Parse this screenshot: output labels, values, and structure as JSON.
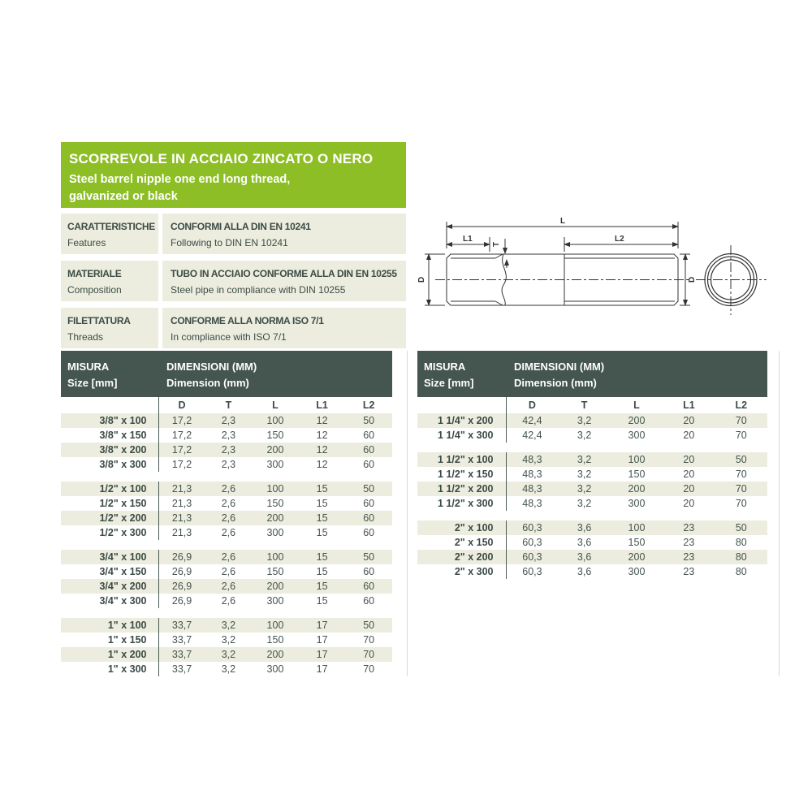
{
  "header": {
    "title_it": "SCORREVOLE IN ACCIAIO ZINCATO O NERO",
    "subtitle_line1": "Steel barrel nipple one end long thread,",
    "subtitle_line2": "galvanized or black"
  },
  "specs": [
    {
      "label_it": "CARATTERISTICHE",
      "label_en": "Features",
      "value_it": "CONFORMI ALLA DIN EN 10241",
      "value_en": "Following to DIN EN 10241"
    },
    {
      "label_it": "MATERIALE",
      "label_en": "Composition",
      "value_it": "TUBO IN ACCIAIO CONFORME ALLA DIN EN 10255",
      "value_en": "Steel pipe in compliance with DIN 10255"
    },
    {
      "label_it": "FILETTATURA",
      "label_en": "Threads",
      "value_it": "CONFORME ALLA NORMA ISO 7/1",
      "value_en": "In compliance with ISO 7/1"
    }
  ],
  "drawing": {
    "dim_l": "L",
    "dim_l1": "L1",
    "dim_l2": "L2",
    "dim_t": "T",
    "dim_d_left": "D",
    "dim_d_right": "D"
  },
  "table_header": {
    "misura_it": "MISURA",
    "misura_en": "Size [mm]",
    "dim_it": "DIMENSIONI (MM)",
    "dim_en": "Dimension (mm)"
  },
  "columns": [
    "D",
    "T",
    "L",
    "L1",
    "L2"
  ],
  "tables": [
    {
      "groups": [
        {
          "rows": [
            {
              "size": "3/8\" x 100",
              "values": [
                "17,2",
                "2,3",
                "100",
                "12",
                "50"
              ]
            },
            {
              "size": "3/8\" x 150",
              "values": [
                "17,2",
                "2,3",
                "150",
                "12",
                "60"
              ]
            },
            {
              "size": "3/8\" x 200",
              "values": [
                "17,2",
                "2,3",
                "200",
                "12",
                "60"
              ]
            },
            {
              "size": "3/8\" x 300",
              "values": [
                "17,2",
                "2,3",
                "300",
                "12",
                "60"
              ]
            }
          ]
        },
        {
          "rows": [
            {
              "size": "1/2\" x 100",
              "values": [
                "21,3",
                "2,6",
                "100",
                "15",
                "50"
              ]
            },
            {
              "size": "1/2\" x 150",
              "values": [
                "21,3",
                "2,6",
                "150",
                "15",
                "60"
              ]
            },
            {
              "size": "1/2\" x 200",
              "values": [
                "21,3",
                "2,6",
                "200",
                "15",
                "60"
              ]
            },
            {
              "size": "1/2\" x 300",
              "values": [
                "21,3",
                "2,6",
                "300",
                "15",
                "60"
              ]
            }
          ]
        },
        {
          "rows": [
            {
              "size": "3/4\" x 100",
              "values": [
                "26,9",
                "2,6",
                "100",
                "15",
                "50"
              ]
            },
            {
              "size": "3/4\" x 150",
              "values": [
                "26,9",
                "2,6",
                "150",
                "15",
                "60"
              ]
            },
            {
              "size": "3/4\" x 200",
              "values": [
                "26,9",
                "2,6",
                "200",
                "15",
                "60"
              ]
            },
            {
              "size": "3/4\" x 300",
              "values": [
                "26,9",
                "2,6",
                "300",
                "15",
                "60"
              ]
            }
          ]
        },
        {
          "rows": [
            {
              "size": "1\" x 100",
              "values": [
                "33,7",
                "3,2",
                "100",
                "17",
                "50"
              ]
            },
            {
              "size": "1\" x 150",
              "values": [
                "33,7",
                "3,2",
                "150",
                "17",
                "70"
              ]
            },
            {
              "size": "1\" x 200",
              "values": [
                "33,7",
                "3,2",
                "200",
                "17",
                "70"
              ]
            },
            {
              "size": "1\" x 300",
              "values": [
                "33,7",
                "3,2",
                "300",
                "17",
                "70"
              ]
            }
          ]
        }
      ]
    },
    {
      "groups": [
        {
          "rows": [
            {
              "size": "1 1/4\" x 200",
              "values": [
                "42,4",
                "3,2",
                "200",
                "20",
                "70"
              ]
            },
            {
              "size": "1 1/4\" x 300",
              "values": [
                "42,4",
                "3,2",
                "300",
                "20",
                "70"
              ]
            }
          ]
        },
        {
          "rows": [
            {
              "size": "1 1/2\" x 100",
              "values": [
                "48,3",
                "3,2",
                "100",
                "20",
                "50"
              ]
            },
            {
              "size": "1 1/2\" x 150",
              "values": [
                "48,3",
                "3,2",
                "150",
                "20",
                "70"
              ]
            },
            {
              "size": "1 1/2\" x 200",
              "values": [
                "48,3",
                "3,2",
                "200",
                "20",
                "70"
              ]
            },
            {
              "size": "1 1/2\" x 300",
              "values": [
                "48,3",
                "3,2",
                "300",
                "20",
                "70"
              ]
            }
          ]
        },
        {
          "rows": [
            {
              "size": "2\" x 100",
              "values": [
                "60,3",
                "3,6",
                "100",
                "23",
                "50"
              ]
            },
            {
              "size": "2\" x 150",
              "values": [
                "60,3",
                "3,6",
                "150",
                "23",
                "80"
              ]
            },
            {
              "size": "2\" x 200",
              "values": [
                "60,3",
                "3,6",
                "200",
                "23",
                "80"
              ]
            },
            {
              "size": "2\" x 300",
              "values": [
                "60,3",
                "3,6",
                "300",
                "23",
                "80"
              ]
            }
          ]
        }
      ]
    }
  ],
  "colors": {
    "accent_green": "#8dbe26",
    "header_dark": "#44564f",
    "row_beige": "#ecedde",
    "text_dark": "#3c4b46"
  }
}
